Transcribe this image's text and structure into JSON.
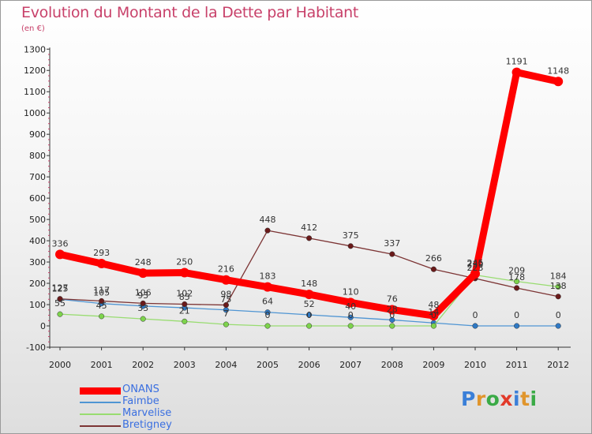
{
  "title": "Evolution du Montant de la Dette par Habitant",
  "subtitle": "(en €)",
  "logo": {
    "text": "Proxiti",
    "letters": [
      {
        "ch": "P",
        "color": "#3a7fd8"
      },
      {
        "ch": "r",
        "color": "#e0952c"
      },
      {
        "ch": "o",
        "color": "#3aaa46"
      },
      {
        "ch": "x",
        "color": "#e23a2a"
      },
      {
        "ch": "i",
        "color": "#3a7fd8"
      },
      {
        "ch": "t",
        "color": "#e0952c"
      },
      {
        "ch": "i",
        "color": "#3aaa46"
      }
    ]
  },
  "chart_data": {
    "type": "line",
    "title": "Evolution du Montant de la Dette par Habitant",
    "ylabel": "(en €)",
    "xlabel": "",
    "categories": [
      "2000",
      "2001",
      "2002",
      "2003",
      "2004",
      "2005",
      "2006",
      "2007",
      "2008",
      "2009",
      "2010",
      "2011",
      "2012"
    ],
    "ylim": [
      -100,
      1300
    ],
    "yticks": [
      -100,
      0,
      100,
      200,
      300,
      400,
      500,
      600,
      700,
      800,
      900,
      1000,
      1100,
      1200,
      1300
    ],
    "grid": false,
    "legend_position": "bottom-left",
    "series": [
      {
        "name": "ONANS",
        "color": "#ff0000",
        "point_color": "#ff0000",
        "style": "thick",
        "values": [
          336,
          293,
          248,
          250,
          216,
          183,
          148,
          110,
          76,
          48,
          245,
          1191,
          1148
        ],
        "labels": [
          "336",
          "293",
          "248",
          "250",
          "216",
          "183",
          "148",
          "110",
          "76",
          "48",
          "245",
          "1191",
          "1148"
        ]
      },
      {
        "name": "Faimbe",
        "color": "#4f95d3",
        "point_color": "#2f79c4",
        "style": "thin",
        "values": [
          125,
          105,
          93,
          85,
          75,
          64,
          52,
          40,
          28,
          14,
          0,
          0,
          0
        ],
        "labels": [
          "125",
          "105",
          "93",
          "85",
          "75",
          "64",
          "52",
          "40",
          "28",
          "14",
          "0",
          "0",
          "0"
        ]
      },
      {
        "name": "Marvelise",
        "color": "#98dc70",
        "point_color": "#7dd34c",
        "style": "thin",
        "values": [
          55,
          45,
          33,
          21,
          7,
          0,
          0,
          0,
          0,
          0,
          239,
          209,
          184
        ],
        "labels": [
          "55",
          "45",
          "33",
          "21",
          "7",
          "0",
          "0",
          "0",
          "0",
          "0",
          "239",
          "209",
          "184"
        ]
      },
      {
        "name": "Bretigney",
        "color": "#7c3434",
        "point_color": "#6a1a1a",
        "style": "thin",
        "values": [
          127,
          117,
          106,
          102,
          98,
          448,
          412,
          375,
          337,
          266,
          223,
          178,
          138
        ],
        "labels": [
          "127",
          "117",
          "106",
          "102",
          "98",
          "448",
          "412",
          "375",
          "337",
          "266",
          "223",
          "178",
          "138"
        ]
      }
    ]
  }
}
